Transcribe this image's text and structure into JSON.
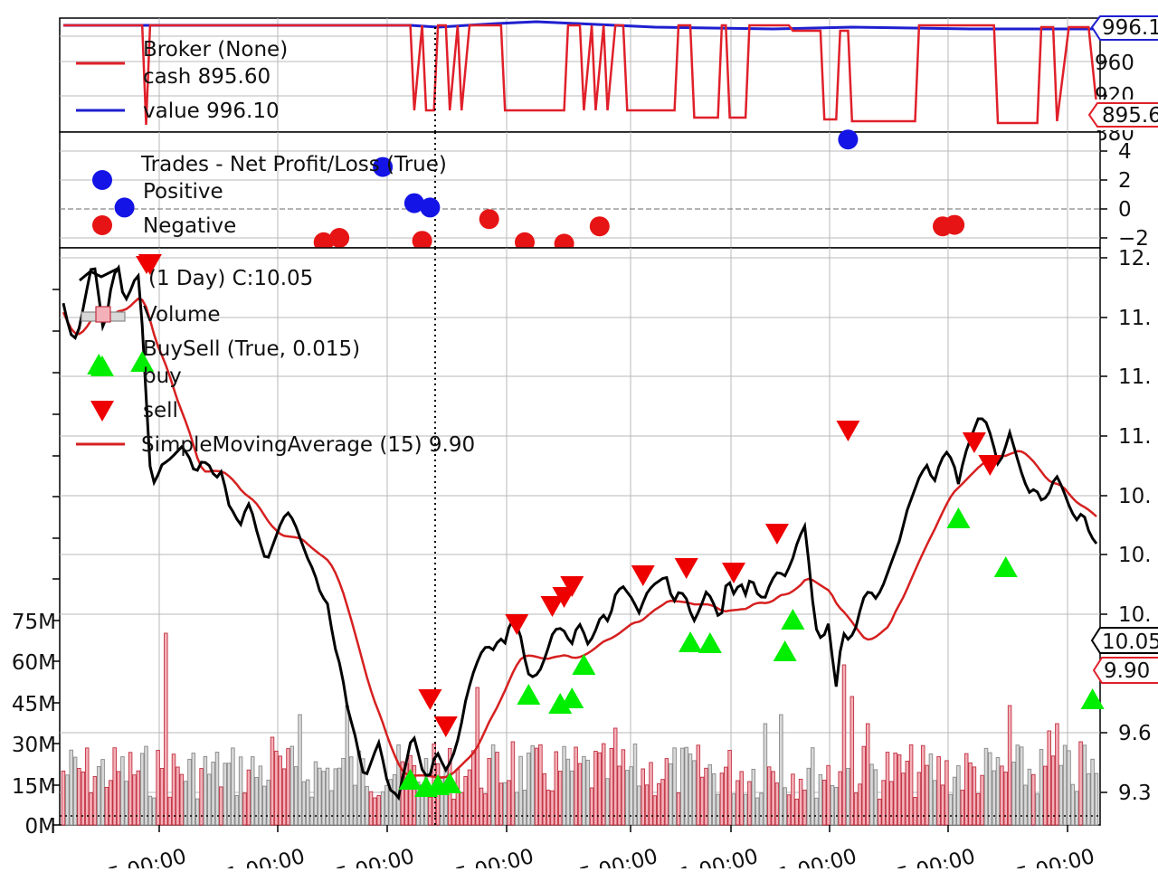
{
  "panels": {
    "broker": {
      "legend": {
        "title": "Broker (None)",
        "cash": "cash 895.60",
        "value": "value 996.10"
      },
      "yticks": [
        "960",
        "920",
        "880"
      ],
      "tags": {
        "value": "996.1",
        "cash": "895.6"
      }
    },
    "trades": {
      "legend": {
        "title": "Trades - Net Profit/Loss (True)",
        "positive": "Positive",
        "negative": "Negative"
      },
      "yticks": [
        "4",
        "2",
        "0",
        "−2"
      ]
    },
    "price": {
      "legend": {
        "data": "(1 Day) C:10.05",
        "volume": "Volume",
        "buysell": "BuySell (True, 0.015)",
        "buy": "buy",
        "sell": "sell",
        "sma": "SimpleMovingAverage (15) 9.90"
      },
      "yticks": [
        "12.",
        "11.",
        "11.",
        "11.",
        "10.",
        "10.",
        "10.",
        "9.6",
        "9.3"
      ],
      "volume_ticks": [
        "75M",
        "60M",
        "45M",
        "30M",
        "15M",
        "0M"
      ],
      "tags": {
        "close": "10.05",
        "sma": "9.90"
      },
      "xticks": [
        "5 00:00",
        "1 00:00",
        "5 00:00",
        "5 00:00",
        "5 00:00",
        "1 00:00",
        "1 00:00",
        "5 00:00",
        "5 00:00"
      ]
    }
  },
  "colors": {
    "close": "#000000",
    "sma": "#d62020",
    "cash": "#e0202a",
    "value": "#1f1fd0",
    "positive": "#1414e6",
    "negative": "#e61414",
    "buy": "#00ee00",
    "sell": "#ee0000",
    "volume_up": "#f4b0b8",
    "volume_down": "#d8d8d8"
  },
  "chart_data": [
    {
      "type": "line",
      "title": "Broker (None)",
      "series": [
        {
          "name": "cash",
          "last": 895.6
        },
        {
          "name": "value",
          "last": 996.1
        }
      ]
    },
    {
      "type": "scatter",
      "title": "Trades - Net Profit/Loss (True)",
      "series": [
        {
          "name": "Positive",
          "points": [
            [
              15.5,
              0.1
            ],
            [
              81,
              2.9
            ],
            [
              89,
              0.4
            ],
            [
              93,
              0.1
            ],
            [
              199,
              4.8
            ]
          ]
        },
        {
          "name": "Negative",
          "points": [
            [
              66,
              -2.3
            ],
            [
              70,
              -2.0
            ],
            [
              91,
              -2.2
            ],
            [
              108,
              -0.7
            ],
            [
              117,
              -2.3
            ],
            [
              127,
              -2.4
            ],
            [
              136,
              -1.2
            ],
            [
              223,
              -1.2
            ],
            [
              226,
              -1.1
            ]
          ]
        }
      ]
    },
    {
      "type": "line",
      "series": [
        {
          "name": "(1 Day) C:10.05",
          "last": 10.05
        },
        {
          "name": "SimpleMovingAverage (15) 9.90",
          "last": 9.9
        }
      ],
      "volume_max_label": "75M"
    }
  ]
}
